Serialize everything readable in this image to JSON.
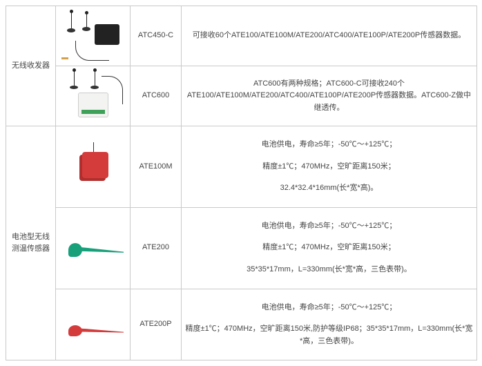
{
  "categories": [
    {
      "label": "无线收发器"
    },
    {
      "label": "电池型无线测温传感器"
    }
  ],
  "rows": [
    {
      "model": "ATC450-C",
      "desc": "可接收60个ATE100/ATE100M/ATE200/ATC400/ATE100P/ATE200P传感器数据。"
    },
    {
      "model": "ATC600",
      "desc": "ATC600有两种规格；ATC600-C可接收240个ATE100/ATE100M/ATE200/ATC400/ATE100P/ATE200P传感器数据。ATC600-Z做中继透传。"
    },
    {
      "model": "ATE100M",
      "d1": "电池供电，寿命≥5年；-50℃～+125℃；",
      "d2": "精度±1℃；470MHz，空旷距离150米；",
      "d3": "32.4*32.4*16mm(长*宽*高)。"
    },
    {
      "model": "ATE200",
      "d1": "电池供电，寿命≥5年；-50℃～+125℃；",
      "d2": "精度±1℃；470MHz，空旷距离150米；",
      "d3": "35*35*17mm，L=330mm(长*宽*高，三色表带)。"
    },
    {
      "model": "ATE200P",
      "d1": "电池供电，寿命≥5年；-50℃～+125℃；",
      "d2": "精度±1℃；470MHz，空旷距离150米,防护等级IP68；35*35*17mm，L=330mm(长*宽*高，三色表带)。"
    }
  ]
}
